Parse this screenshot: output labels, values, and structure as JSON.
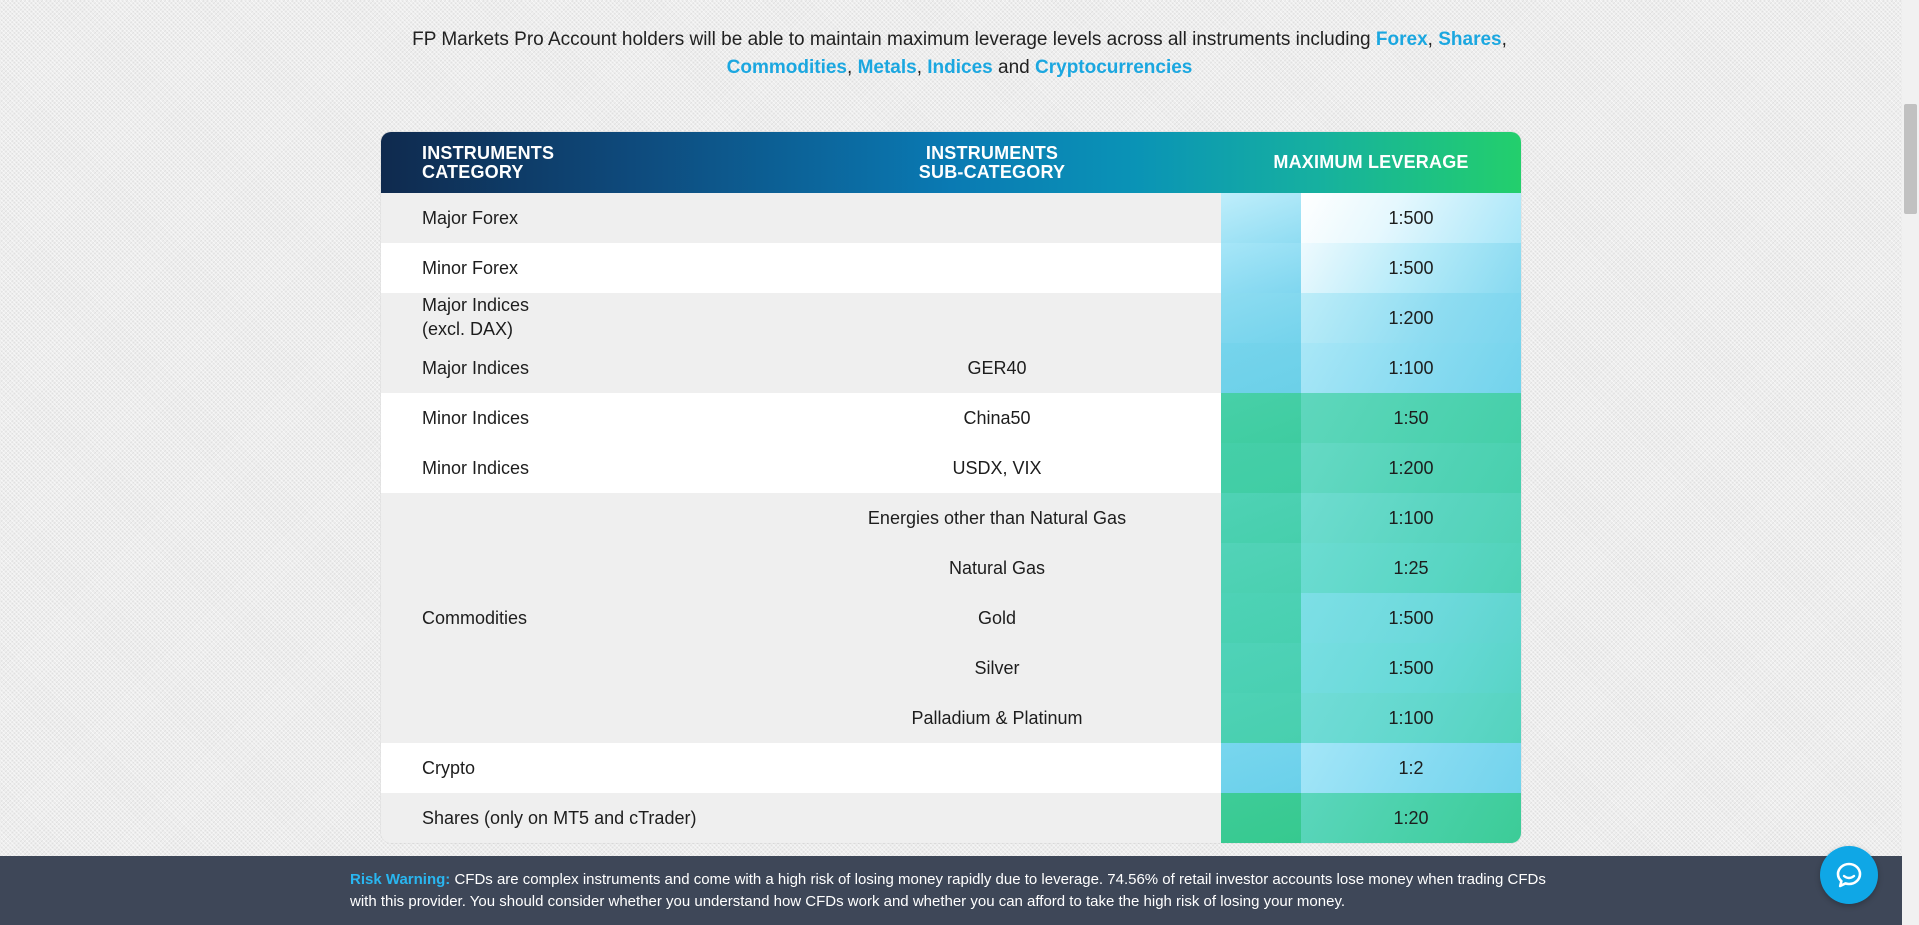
{
  "intro": {
    "text_before": "FP Markets Pro Account holders will be able to maintain maximum leverage levels across all instruments including ",
    "links": [
      "Forex",
      "Shares",
      "Commodities",
      "Metals",
      "Indices",
      "Cryptocurrencies"
    ],
    "sep_comma": ", ",
    "sep_comma_end": ",",
    "sep_and": " and "
  },
  "table": {
    "headers": {
      "category_line1": "INSTRUMENTS",
      "category_line2": "CATEGORY",
      "subcategory_line1": "INSTRUMENTS",
      "subcategory_line2": "SUB-CATEGORY",
      "leverage": "MAXIMUM LEVERAGE"
    },
    "rows": [
      {
        "category": "Major Forex",
        "subcategory": "",
        "leverage": "1:500"
      },
      {
        "category": "Minor Forex",
        "subcategory": "",
        "leverage": "1:500"
      },
      {
        "category": "Major Indices",
        "category_line2": "(excl. DAX)",
        "subcategory": "",
        "leverage": "1:200"
      },
      {
        "category": "Major Indices",
        "subcategory": "GER40",
        "leverage": "1:100"
      },
      {
        "category": "Minor Indices",
        "subcategory": "China50",
        "leverage": "1:50"
      },
      {
        "category": "Minor Indices",
        "subcategory": "USDX, VIX",
        "leverage": "1:200"
      },
      {
        "category": "",
        "subcategory": "Energies other than Natural Gas",
        "leverage": "1:100"
      },
      {
        "category": "",
        "subcategory": "Natural Gas",
        "leverage": "1:25"
      },
      {
        "category": "Commodities",
        "subcategory": "Gold",
        "leverage": "1:500"
      },
      {
        "category": "",
        "subcategory": "Silver",
        "leverage": "1:500"
      },
      {
        "category": "",
        "subcategory": "Palladium & Platinum",
        "leverage": "1:100"
      },
      {
        "category": "Crypto",
        "subcategory": "",
        "leverage": "1:2"
      },
      {
        "category": "Shares (only on MT5 and cTrader)",
        "subcategory": "",
        "leverage": "1:20"
      }
    ]
  },
  "risk_warning": {
    "label": "Risk Warning:",
    "text": " CFDs are complex instruments and come with a high risk of losing money rapidly due to leverage. 74.56% of retail investor accounts lose money when trading CFDs with this provider. You should consider whether you understand how CFDs work and whether you can afford to take the high risk of losing your money."
  },
  "chat": {
    "icon": "chat-bubble-icon"
  },
  "colors": {
    "link": "#1ba7e0",
    "footer_bg": "#3e4758",
    "chat_bg": "#0fa7e6",
    "risk_label": "#29b6f0"
  }
}
